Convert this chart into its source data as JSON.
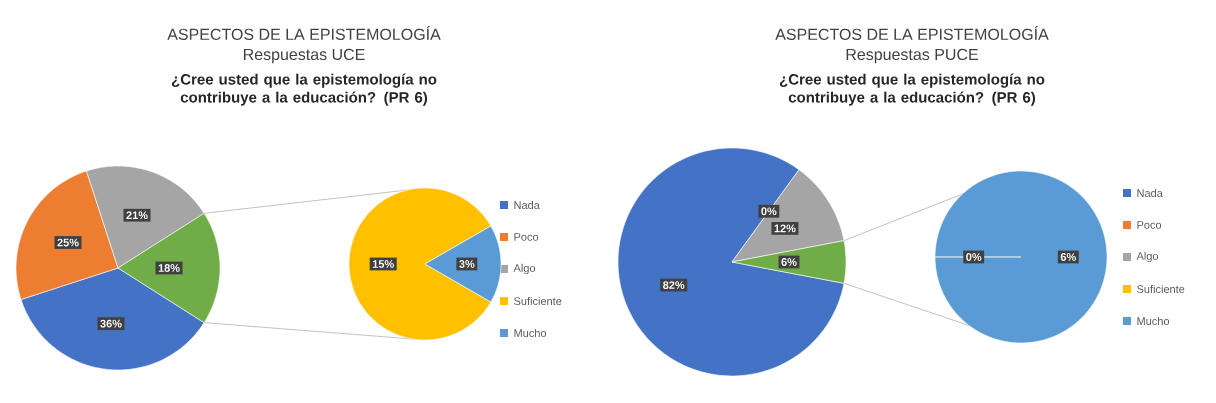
{
  "chart_data": [
    {
      "type": "pie",
      "title": "ASPECTOS DE LA EPISTEMOLOGÍA",
      "subtitle": "Respuestas UCE",
      "annotations": [
        "¿Cree usted que la epistemología no contribuye a la educación? (PR 6)"
      ],
      "categories": [
        "Nada",
        "Poco",
        "Algo",
        null
      ],
      "values": [
        36,
        25,
        21,
        18
      ],
      "value_labels": [
        "36%",
        "25%",
        "21%",
        "18%"
      ],
      "colors": [
        "#4472c4",
        "#ed7d31",
        "#a5a5a5",
        "#70ad47"
      ],
      "legend": "right"
    },
    {
      "type": "pie",
      "categories": [
        "Suficiente",
        "Mucho"
      ],
      "values": [
        15,
        3
      ],
      "value_labels": [
        "15%",
        "3%"
      ],
      "colors": [
        "#ffc000",
        "#5b9bd5"
      ],
      "legend": "right"
    },
    {
      "type": "pie",
      "title": "ASPECTOS DE LA EPISTEMOLOGÍA",
      "subtitle": "Respuestas PUCE",
      "annotations": [
        "¿Cree usted que la epistemología no contribuye a la educación? (PR 6)"
      ],
      "categories": [
        "Nada",
        "Poco",
        "Algo",
        null
      ],
      "values": [
        82,
        0,
        12,
        6
      ],
      "value_labels": [
        "82%",
        "0%",
        "12%",
        "6%"
      ],
      "colors": [
        "#4472c4",
        "#ed7d31",
        "#a5a5a5",
        "#70ad47"
      ],
      "legend": "right"
    },
    {
      "type": "pie",
      "categories": [
        "Suficiente",
        "Mucho"
      ],
      "values": [
        0,
        6
      ],
      "value_labels": [
        "0%",
        "6%"
      ],
      "colors": [
        "#ffc000",
        "#5b9bd5"
      ],
      "legend": "right"
    }
  ]
}
